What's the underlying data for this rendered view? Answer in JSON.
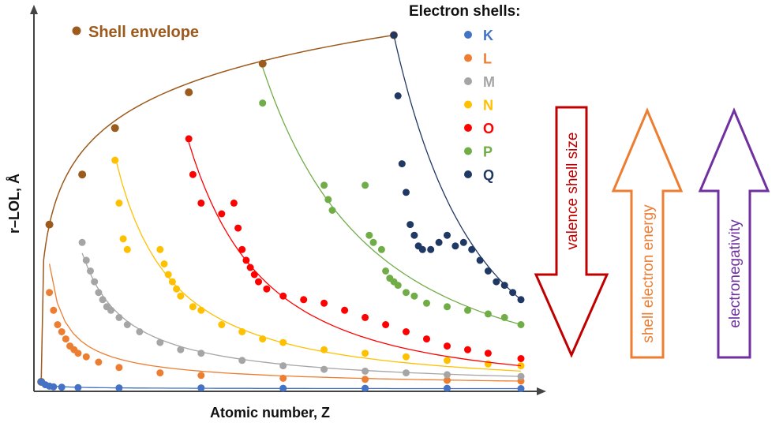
{
  "chart_data": {
    "type": "scatter",
    "xlabel": "Atomic number, Z",
    "ylabel": "r–LOL, Å",
    "xlim": [
      0,
      118
    ],
    "ylim": [
      0,
      10
    ],
    "grid": false,
    "legend": {
      "title": "Electron shells:",
      "position": "top-right",
      "entries": [
        {
          "label": "K",
          "color": "#4472c4"
        },
        {
          "label": "L",
          "color": "#ed7d31"
        },
        {
          "label": "M",
          "color": "#a5a5a5"
        },
        {
          "label": "N",
          "color": "#ffc000"
        },
        {
          "label": "O",
          "color": "#ff0000"
        },
        {
          "label": "P",
          "color": "#70ad47"
        },
        {
          "label": "Q",
          "color": "#203864"
        }
      ]
    },
    "envelope": {
      "label": "Shell envelope",
      "color": "#9c5a1c",
      "points": [
        [
          1,
          0.2
        ],
        [
          3,
          4.6
        ],
        [
          11,
          6.0
        ],
        [
          19,
          7.3
        ],
        [
          37,
          8.3
        ],
        [
          55,
          9.1
        ],
        [
          87,
          9.9
        ]
      ]
    },
    "series": [
      {
        "name": "K",
        "color": "#4472c4",
        "fit": [
          [
            1,
            0.2
          ],
          [
            118,
            0.01
          ]
        ],
        "points": [
          [
            1,
            0.2
          ],
          [
            2,
            0.12
          ],
          [
            3,
            0.08
          ],
          [
            4,
            0.06
          ],
          [
            6,
            0.05
          ],
          [
            10,
            0.04
          ],
          [
            20,
            0.03
          ],
          [
            40,
            0.03
          ],
          [
            60,
            0.02
          ],
          [
            80,
            0.02
          ],
          [
            100,
            0.02
          ],
          [
            118,
            0.01
          ]
        ]
      },
      {
        "name": "L",
        "color": "#ed7d31",
        "fit": [
          [
            3,
            3.5
          ],
          [
            118,
            0.22
          ]
        ],
        "points": [
          [
            3,
            2.7
          ],
          [
            4,
            2.2
          ],
          [
            5,
            1.8
          ],
          [
            6,
            1.6
          ],
          [
            7,
            1.4
          ],
          [
            8,
            1.2
          ],
          [
            9,
            1.1
          ],
          [
            10,
            1.0
          ],
          [
            12,
            0.9
          ],
          [
            15,
            0.75
          ],
          [
            20,
            0.6
          ],
          [
            30,
            0.45
          ],
          [
            40,
            0.38
          ],
          [
            60,
            0.3
          ],
          [
            80,
            0.27
          ],
          [
            100,
            0.24
          ],
          [
            118,
            0.22
          ]
        ]
      },
      {
        "name": "M",
        "color": "#a5a5a5",
        "fit": [
          [
            11,
            3.8
          ],
          [
            118,
            0.35
          ]
        ],
        "points": [
          [
            11,
            4.1
          ],
          [
            12,
            3.6
          ],
          [
            13,
            3.3
          ],
          [
            14,
            3.0
          ],
          [
            15,
            2.7
          ],
          [
            16,
            2.5
          ],
          [
            17,
            2.3
          ],
          [
            18,
            2.2
          ],
          [
            20,
            2.0
          ],
          [
            22,
            1.8
          ],
          [
            25,
            1.6
          ],
          [
            30,
            1.3
          ],
          [
            35,
            1.1
          ],
          [
            40,
            1.0
          ],
          [
            50,
            0.8
          ],
          [
            60,
            0.65
          ],
          [
            70,
            0.55
          ],
          [
            80,
            0.5
          ],
          [
            90,
            0.45
          ],
          [
            100,
            0.4
          ],
          [
            118,
            0.35
          ]
        ]
      },
      {
        "name": "N",
        "color": "#ffc000",
        "fit": [
          [
            19,
            6.5
          ],
          [
            118,
            0.5
          ]
        ],
        "points": [
          [
            19,
            6.4
          ],
          [
            20,
            5.2
          ],
          [
            21,
            4.2
          ],
          [
            22,
            3.9
          ],
          [
            30,
            3.9
          ],
          [
            31,
            3.5
          ],
          [
            32,
            3.2
          ],
          [
            33,
            3.0
          ],
          [
            34,
            2.8
          ],
          [
            35,
            2.6
          ],
          [
            38,
            2.3
          ],
          [
            40,
            2.2
          ],
          [
            45,
            1.8
          ],
          [
            50,
            1.6
          ],
          [
            55,
            1.4
          ],
          [
            60,
            1.3
          ],
          [
            70,
            1.1
          ],
          [
            80,
            1.0
          ],
          [
            90,
            0.9
          ],
          [
            100,
            0.8
          ],
          [
            110,
            0.7
          ],
          [
            118,
            0.65
          ]
        ]
      },
      {
        "name": "O",
        "color": "#ff0000",
        "fit": [
          [
            37,
            6.9
          ],
          [
            118,
            0.65
          ]
        ],
        "points": [
          [
            37,
            7.0
          ],
          [
            38,
            6.0
          ],
          [
            40,
            5.2
          ],
          [
            45,
            4.9
          ],
          [
            48,
            5.2
          ],
          [
            49,
            4.5
          ],
          [
            50,
            3.9
          ],
          [
            51,
            3.6
          ],
          [
            52,
            3.4
          ],
          [
            53,
            3.2
          ],
          [
            54,
            3.0
          ],
          [
            56,
            2.8
          ],
          [
            60,
            2.6
          ],
          [
            65,
            2.5
          ],
          [
            70,
            2.4
          ],
          [
            75,
            2.2
          ],
          [
            80,
            2.0
          ],
          [
            85,
            1.8
          ],
          [
            90,
            1.6
          ],
          [
            95,
            1.4
          ],
          [
            100,
            1.2
          ],
          [
            105,
            1.1
          ],
          [
            110,
            1.0
          ],
          [
            118,
            0.85
          ]
        ]
      },
      {
        "name": "P",
        "color": "#70ad47",
        "fit": [
          [
            55,
            9.0
          ],
          [
            118,
            1.8
          ]
        ],
        "points": [
          [
            55,
            8.0
          ],
          [
            70,
            5.7
          ],
          [
            71,
            5.3
          ],
          [
            72,
            5.0
          ],
          [
            80,
            5.7
          ],
          [
            81,
            4.3
          ],
          [
            82,
            4.1
          ],
          [
            84,
            3.9
          ],
          [
            85,
            3.3
          ],
          [
            86,
            3.1
          ],
          [
            87,
            3.0
          ],
          [
            88,
            2.9
          ],
          [
            90,
            2.7
          ],
          [
            92,
            2.6
          ],
          [
            95,
            2.4
          ],
          [
            100,
            2.3
          ],
          [
            105,
            2.2
          ],
          [
            110,
            2.1
          ],
          [
            114,
            2.0
          ],
          [
            118,
            1.8
          ]
        ]
      },
      {
        "name": "Q",
        "color": "#203864",
        "fit": [
          [
            87,
            9.9
          ],
          [
            118,
            2.5
          ]
        ],
        "points": [
          [
            87,
            9.9
          ],
          [
            88,
            8.2
          ],
          [
            89,
            6.3
          ],
          [
            90,
            5.5
          ],
          [
            91,
            4.6
          ],
          [
            92,
            4.3
          ],
          [
            93,
            4.0
          ],
          [
            94,
            3.9
          ],
          [
            96,
            3.9
          ],
          [
            98,
            4.1
          ],
          [
            100,
            4.3
          ],
          [
            102,
            4.0
          ],
          [
            104,
            4.1
          ],
          [
            106,
            3.9
          ],
          [
            108,
            3.6
          ],
          [
            110,
            3.3
          ],
          [
            112,
            3.0
          ],
          [
            114,
            2.9
          ],
          [
            116,
            2.7
          ],
          [
            118,
            2.5
          ]
        ]
      }
    ]
  },
  "arrows": [
    {
      "label": "valence shell size",
      "direction": "down",
      "color": "#c00000"
    },
    {
      "label": "shell electron energy",
      "direction": "up",
      "color": "#ed7d31"
    },
    {
      "label": "electronegativity",
      "direction": "up",
      "color": "#7030a0"
    }
  ]
}
